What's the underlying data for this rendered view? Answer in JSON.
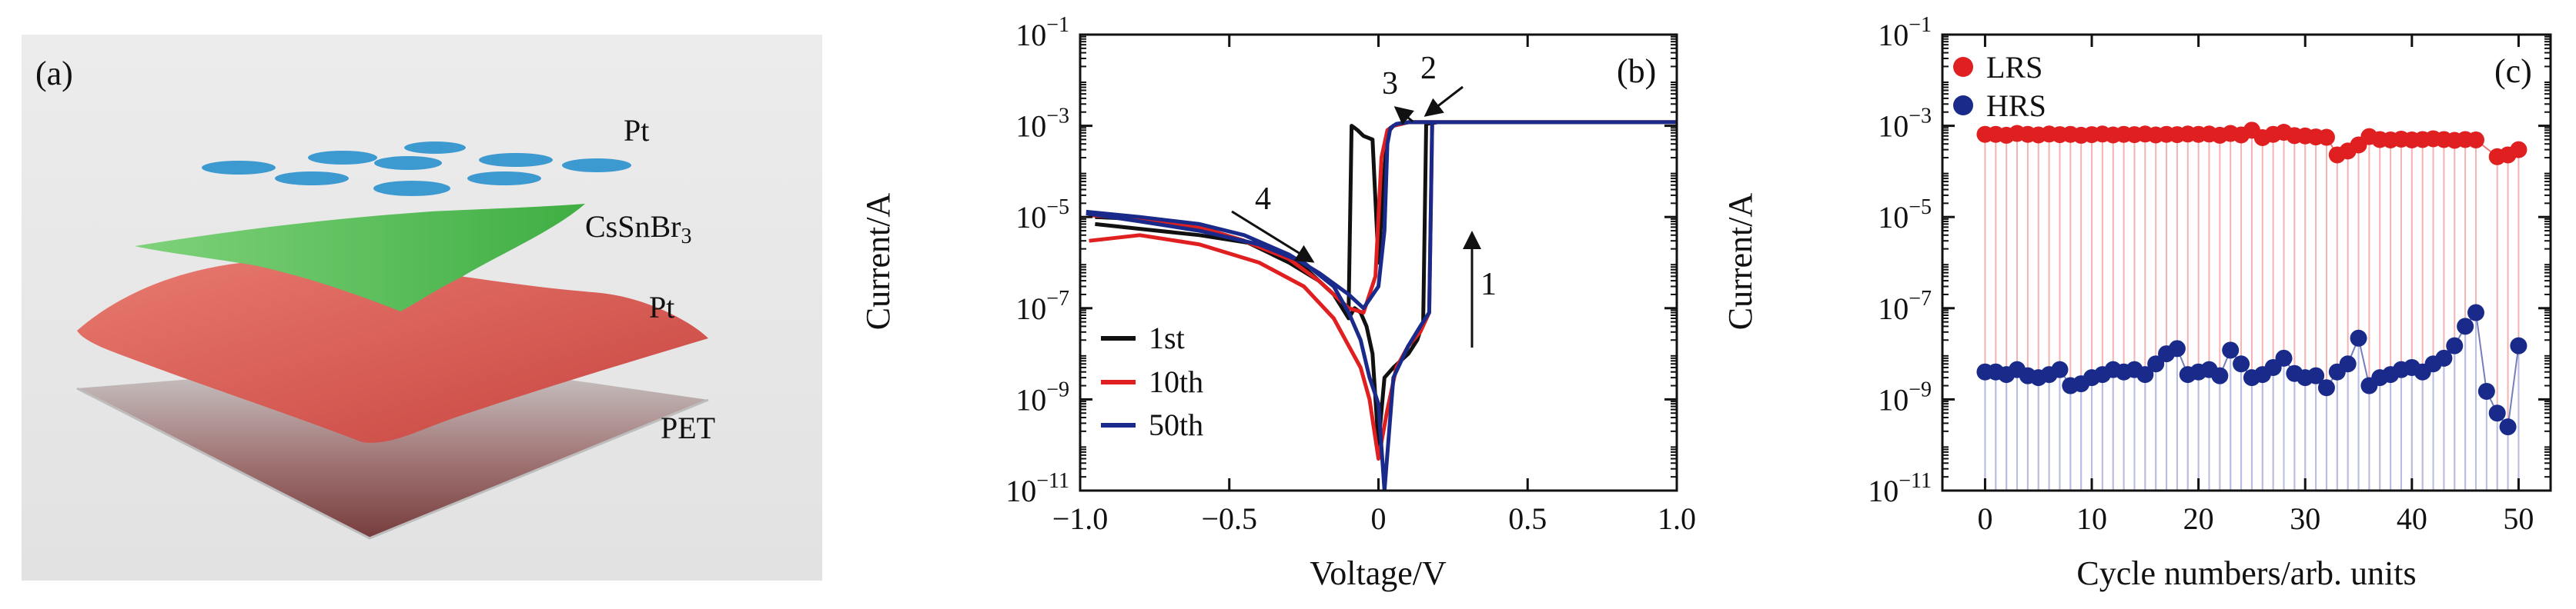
{
  "panel_a": {
    "tag": "(a)",
    "layers": [
      "Pt",
      "CsSnBr",
      "3",
      "Pt",
      "PET"
    ],
    "colors": {
      "pt_dots": "#3d9ad1",
      "perovskite": "#5cc25a",
      "pt_film": "#d9605a",
      "pet": "#7a3b3b",
      "background": "#e6e6e6"
    }
  },
  "chart_data": [
    {
      "panel": "(b)",
      "type": "line",
      "xlabel": "Voltage/V",
      "ylabel": "Current/A",
      "xlim": [
        -1.0,
        1.0
      ],
      "ylim_log10": [
        -11,
        -1
      ],
      "yscale": "log",
      "xticks": [
        -1.0,
        -0.5,
        0,
        0.5,
        1.0
      ],
      "xtick_labels": [
        "−1.0",
        "−0.5",
        "0",
        "0.5",
        "1.0"
      ],
      "yticks_exp": [
        -11,
        -9,
        -7,
        -5,
        -3,
        -1
      ],
      "legend_position": "lower-left",
      "annotations": [
        "1",
        "2",
        "3",
        "4"
      ],
      "series": [
        {
          "name": "1st",
          "color": "#111111",
          "x": [
            -0.95,
            -0.8,
            -0.6,
            -0.4,
            -0.25,
            -0.15,
            -0.1,
            -0.08,
            -0.06,
            -0.04,
            -0.02,
            0.0,
            0.02,
            0.05,
            0.1,
            0.13,
            0.15,
            0.16,
            0.2,
            0.4,
            0.6,
            0.8,
            1.0,
            0.8,
            0.5,
            0.2,
            0.1,
            0.05,
            0.03,
            0.02,
            0.0,
            -0.02,
            -0.05,
            -0.07,
            -0.08,
            -0.09,
            -0.1,
            -0.2,
            -0.3,
            -0.45,
            -0.6,
            -0.8,
            -0.95
          ],
          "y": [
            7e-06,
            5.5e-06,
            4e-06,
            2.5e-06,
            8e-07,
            2e-07,
            6e-08,
            1e-07,
            8e-08,
            4e-08,
            1e-08,
            1e-10,
            3e-09,
            5e-09,
            1e-08,
            2e-08,
            5e-08,
            0.0011,
            0.0012,
            0.0012,
            0.0012,
            0.0012,
            0.0012,
            0.0012,
            0.0012,
            0.0012,
            0.0012,
            0.001,
            0.0007,
            0.0001,
            1e-06,
            0.0005,
            0.0006,
            0.0008,
            0.0009,
            0.001,
            1e-07,
            4e-07,
            1e-06,
            3e-06,
            6e-06,
            9e-06,
            1e-05
          ]
        },
        {
          "name": "10th",
          "color": "#e02020",
          "x": [
            -0.97,
            -0.8,
            -0.6,
            -0.4,
            -0.25,
            -0.15,
            -0.1,
            -0.06,
            -0.03,
            0.0,
            0.03,
            0.06,
            0.1,
            0.14,
            0.17,
            0.18,
            0.2,
            0.4,
            0.6,
            0.8,
            1.0,
            0.8,
            0.5,
            0.2,
            0.1,
            0.05,
            0.03,
            0.01,
            -0.01,
            -0.05,
            -0.1,
            -0.2,
            -0.3,
            -0.45,
            -0.6,
            -0.8,
            -0.97
          ],
          "y": [
            3e-06,
            4e-06,
            2.5e-06,
            1e-06,
            3e-07,
            6e-08,
            1.5e-08,
            5e-09,
            1e-09,
            5e-11,
            6e-10,
            5e-09,
            1.5e-08,
            3e-08,
            8e-08,
            0.0012,
            0.0012,
            0.0012,
            0.0012,
            0.0012,
            0.0012,
            0.0012,
            0.0012,
            0.0012,
            0.0012,
            0.001,
            0.0008,
            0.0002,
            5e-07,
            8e-08,
            1e-07,
            4e-07,
            1.2e-06,
            3e-06,
            6e-06,
            9e-06,
            1.1e-05
          ]
        },
        {
          "name": "50th",
          "color": "#1a2a8a",
          "x": [
            -0.98,
            -0.8,
            -0.6,
            -0.4,
            -0.25,
            -0.15,
            -0.1,
            -0.06,
            -0.03,
            0.0,
            0.02,
            0.05,
            0.1,
            0.14,
            0.17,
            0.18,
            0.2,
            0.4,
            0.6,
            0.8,
            1.0,
            0.8,
            0.5,
            0.2,
            0.1,
            0.06,
            0.04,
            0.03,
            0.02,
            0.0,
            -0.05,
            -0.1,
            -0.2,
            -0.3,
            -0.45,
            -0.6,
            -0.8,
            -0.98
          ],
          "y": [
            1.2e-05,
            8e-06,
            5e-06,
            2.5e-06,
            1e-06,
            3e-07,
            8e-08,
            2e-08,
            3e-09,
            8e-10,
            1e-11,
            3e-09,
            1.5e-08,
            4e-08,
            8e-08,
            0.0012,
            0.0012,
            0.0012,
            0.0012,
            0.0012,
            0.0012,
            0.0012,
            0.0012,
            0.0012,
            0.0012,
            0.0011,
            0.0009,
            0.0004,
            5e-06,
            3e-07,
            1e-07,
            2e-07,
            6e-07,
            1.5e-06,
            4e-06,
            7e-06,
            1e-05,
            1.3e-05
          ]
        }
      ]
    },
    {
      "panel": "(c)",
      "type": "scatter",
      "xlabel": "Cycle numbers/arb. units",
      "ylabel": "Current/A",
      "xlim": [
        -4,
        53
      ],
      "ylim_log10": [
        -11,
        -1
      ],
      "yscale": "log",
      "xticks": [
        0,
        10,
        20,
        30,
        40,
        50
      ],
      "yticks_exp": [
        -11,
        -9,
        -7,
        -5,
        -3,
        -1
      ],
      "legend_position": "top-left",
      "series": [
        {
          "name": "LRS",
          "color": "#e02020",
          "light": "#f4b3b3",
          "x": [
            0,
            1,
            2,
            3,
            4,
            5,
            6,
            7,
            8,
            9,
            10,
            11,
            12,
            13,
            14,
            15,
            16,
            17,
            18,
            19,
            20,
            21,
            22,
            23,
            24,
            25,
            26,
            27,
            28,
            29,
            30,
            31,
            32,
            33,
            34,
            35,
            36,
            37,
            38,
            39,
            40,
            41,
            42,
            43,
            44,
            45,
            46,
            48,
            49,
            50
          ],
          "y": [
            0.00065,
            0.00065,
            0.00062,
            0.00068,
            0.00065,
            0.00063,
            0.00066,
            0.00064,
            0.00065,
            0.00062,
            0.00064,
            0.00066,
            0.00063,
            0.00065,
            0.00064,
            0.00066,
            0.00063,
            0.00065,
            0.00064,
            0.00066,
            0.00065,
            0.00066,
            0.00062,
            0.00068,
            0.00063,
            0.0008,
            0.00055,
            0.00065,
            0.00072,
            0.00061,
            0.0006,
            0.00057,
            0.00056,
            0.00023,
            0.00028,
            0.00038,
            0.00058,
            0.0005,
            0.00049,
            0.00051,
            0.00049,
            0.0005,
            0.00052,
            0.0005,
            0.00048,
            0.0005,
            0.00049,
            0.00021,
            0.00023,
            0.0003
          ]
        },
        {
          "name": "HRS",
          "color": "#1a2a8a",
          "light": "#b6bde6",
          "x": [
            0,
            1,
            2,
            3,
            4,
            5,
            6,
            7,
            8,
            9,
            10,
            11,
            12,
            13,
            14,
            15,
            16,
            17,
            18,
            19,
            20,
            21,
            22,
            23,
            24,
            25,
            26,
            27,
            28,
            29,
            30,
            31,
            32,
            33,
            34,
            35,
            36,
            37,
            38,
            39,
            40,
            41,
            42,
            43,
            44,
            45,
            46,
            47,
            48,
            49,
            50
          ],
          "y": [
            4e-09,
            4e-09,
            3.5e-09,
            4.5e-09,
            3.3e-09,
            3e-09,
            3.5e-09,
            4.5e-09,
            2e-09,
            2.2e-09,
            3e-09,
            3.5e-09,
            4.5e-09,
            4e-09,
            4.5e-09,
            3.5e-09,
            6e-09,
            1e-08,
            1.3e-08,
            3.5e-09,
            4e-09,
            4.5e-09,
            3.3e-09,
            1.2e-08,
            6e-09,
            3e-09,
            3.5e-09,
            5e-09,
            8e-09,
            3.7e-09,
            3e-09,
            3.3e-09,
            1.8e-09,
            4e-09,
            6e-09,
            2.2e-08,
            2e-09,
            3e-09,
            3.5e-09,
            4.5e-09,
            5e-09,
            4e-09,
            6e-09,
            8e-09,
            1.5e-08,
            4e-08,
            8e-08,
            1.5e-09,
            5e-10,
            2.5e-10,
            1.5e-08
          ]
        }
      ]
    }
  ]
}
